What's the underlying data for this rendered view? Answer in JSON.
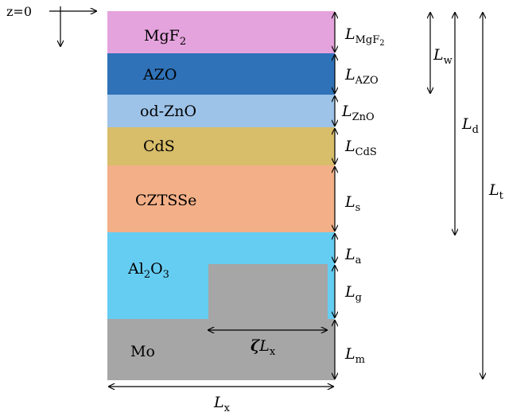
{
  "axis_origin_label": "z=0",
  "layers": [
    {
      "id": "mgf2",
      "name": "MgF",
      "name_sub": "2",
      "color": "#e5a3dd",
      "dim": "L",
      "dim_sub": "MgF",
      "dim_sub_sub": "2"
    },
    {
      "id": "azo",
      "name": "AZO",
      "name_sub": "",
      "color": "#2f72b8",
      "dim": "L",
      "dim_sub": "AZO",
      "dim_sub_sub": ""
    },
    {
      "id": "znO",
      "name": "od-ZnO",
      "name_sub": "",
      "color": "#9ec3e8",
      "dim": "L",
      "dim_sub": "ZnO",
      "dim_sub_sub": ""
    },
    {
      "id": "cds",
      "name": "CdS",
      "name_sub": "",
      "color": "#d8bd6a",
      "dim": "L",
      "dim_sub": "CdS",
      "dim_sub_sub": ""
    },
    {
      "id": "cztsse",
      "name": "CZTSSe",
      "name_sub": "",
      "color": "#f3b088",
      "dim": "L",
      "dim_sub": "s",
      "dim_sub_sub": ""
    },
    {
      "id": "al2o3",
      "name": "Al",
      "name_sub": "2",
      "name_rest": "O",
      "name_rest_sub": "3",
      "color": "#66cdf2",
      "dim": "L",
      "dim_sub": "a",
      "dim_sub_sub": ""
    },
    {
      "id": "mo",
      "name": "Mo",
      "name_sub": "",
      "color": "#a6a6a6",
      "dim": "L",
      "dim_sub": "m",
      "dim_sub_sub": ""
    }
  ],
  "grating": {
    "color": "#a6a6a6",
    "dim": "L",
    "dim_sub": "g",
    "width_label": "ζ",
    "width_label_rest": "L",
    "width_label_sub": "x"
  },
  "outer_dims": {
    "w": {
      "main": "L",
      "sub": "w"
    },
    "d": {
      "main": "L",
      "sub": "d"
    },
    "t": {
      "main": "L",
      "sub": "t"
    },
    "x": {
      "main": "L",
      "sub": "x"
    }
  }
}
